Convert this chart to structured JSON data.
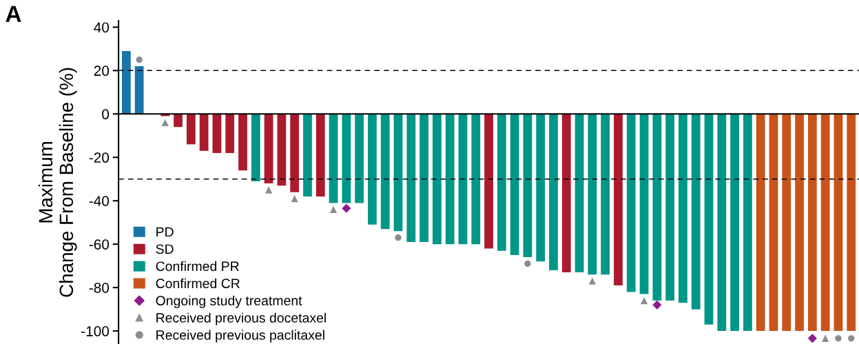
{
  "chart_data": {
    "type": "bar",
    "title": "A",
    "ylabel": "Maximum\nChange From Baseline (%)",
    "categories": [
      null,
      null,
      null,
      null,
      null,
      null,
      null,
      null,
      null,
      null,
      null,
      null,
      null,
      null,
      null,
      null,
      null,
      null,
      null,
      null,
      null,
      null,
      null,
      null,
      null,
      null,
      null,
      null,
      null,
      null,
      null,
      null,
      null,
      null,
      null,
      null,
      null,
      null,
      null,
      null,
      null,
      null,
      null,
      null,
      null,
      null,
      null,
      null,
      null,
      null,
      null,
      null,
      null,
      null,
      null,
      null,
      null
    ],
    "ylim": [
      -106,
      43
    ],
    "yticks": [
      -100,
      -80,
      -60,
      -40,
      -20,
      0,
      20,
      40
    ],
    "tick_labels": "y",
    "legend": "bottom left",
    "ref_lines": [
      {
        "axis": "y",
        "value": 20,
        "line_style": "dashed",
        "color": "#000000"
      },
      {
        "axis": "y",
        "value": -30,
        "line_style": "dashed",
        "color": "#000000"
      }
    ],
    "series": [
      {
        "name": "PD",
        "color": "#1a75a8",
        "values": [
          29,
          22,
          0,
          null,
          null,
          null,
          null,
          null,
          null,
          null,
          null,
          null,
          null,
          null,
          null,
          null,
          null,
          null,
          null,
          null,
          null,
          null,
          null,
          null,
          null,
          null,
          null,
          null,
          null,
          null,
          null,
          null,
          null,
          null,
          null,
          null,
          null,
          null,
          null,
          null,
          null,
          null,
          null,
          null,
          null,
          null,
          null,
          null,
          null,
          null,
          null,
          null,
          null,
          null,
          null,
          null,
          null
        ]
      },
      {
        "name": "SD",
        "color": "#ab1a2d",
        "values": [
          null,
          null,
          null,
          -1,
          -6,
          -14,
          -17,
          -18,
          -18,
          -26,
          null,
          -32,
          -33,
          -36,
          null,
          -38,
          null,
          null,
          null,
          null,
          null,
          null,
          null,
          null,
          null,
          null,
          null,
          null,
          -62,
          null,
          null,
          null,
          null,
          null,
          -73,
          null,
          null,
          null,
          -79,
          null,
          null,
          null,
          null,
          null,
          null,
          null,
          null,
          null,
          null,
          null,
          null,
          null,
          null,
          null,
          null,
          null,
          null
        ]
      },
      {
        "name": "Confirmed PR",
        "color": "#009688",
        "values": [
          null,
          null,
          null,
          null,
          null,
          null,
          null,
          null,
          null,
          null,
          -31,
          null,
          null,
          null,
          -38,
          null,
          -41,
          -41,
          -41,
          -51,
          -53,
          -54,
          -59,
          -59,
          -60,
          -60,
          -60,
          -60,
          null,
          -63,
          -65,
          -66,
          -68,
          -72,
          null,
          -73,
          -74,
          -74,
          null,
          -82,
          -83,
          -86,
          -86,
          -87,
          -90,
          -97,
          -100,
          -100,
          -100,
          null,
          null,
          null,
          null,
          null,
          null,
          null,
          null
        ]
      },
      {
        "name": "Confirmed CR",
        "color": "#c8541a",
        "values": [
          null,
          null,
          null,
          null,
          null,
          null,
          null,
          null,
          null,
          null,
          null,
          null,
          null,
          null,
          null,
          null,
          null,
          null,
          null,
          null,
          null,
          null,
          null,
          null,
          null,
          null,
          null,
          null,
          null,
          null,
          null,
          null,
          null,
          null,
          null,
          null,
          null,
          null,
          null,
          null,
          null,
          null,
          null,
          null,
          null,
          null,
          null,
          null,
          null,
          -100,
          -100,
          -100,
          -100,
          -100,
          -100,
          -100,
          -100
        ]
      },
      {
        "name": "Ongoing study treatment",
        "type": "scatter",
        "marker": "diamond",
        "color": "#8e1c8e",
        "values": [
          null,
          null,
          null,
          null,
          null,
          null,
          null,
          null,
          null,
          null,
          null,
          null,
          null,
          null,
          null,
          null,
          null,
          -43.5,
          null,
          null,
          null,
          null,
          null,
          null,
          null,
          null,
          null,
          null,
          null,
          null,
          null,
          null,
          null,
          null,
          null,
          null,
          null,
          null,
          null,
          null,
          null,
          -88,
          null,
          null,
          null,
          null,
          null,
          null,
          null,
          null,
          null,
          null,
          null,
          -103.4,
          null,
          null,
          null
        ]
      },
      {
        "name": "Received previous docetaxel",
        "type": "scatter",
        "marker": "triangle",
        "color": "#8c8c8c",
        "values": [
          null,
          null,
          null,
          -4,
          null,
          null,
          null,
          null,
          null,
          null,
          null,
          -35,
          null,
          -39,
          null,
          null,
          -44,
          null,
          null,
          null,
          null,
          null,
          null,
          null,
          null,
          null,
          null,
          null,
          null,
          null,
          null,
          null,
          null,
          null,
          null,
          null,
          -77,
          null,
          null,
          null,
          -86,
          null,
          null,
          null,
          null,
          null,
          null,
          null,
          null,
          null,
          null,
          null,
          null,
          null,
          -103.4,
          null,
          null
        ]
      },
      {
        "name": "Received previous paclitaxel",
        "type": "scatter",
        "marker": "circle",
        "color": "#8c8c8c",
        "values": [
          null,
          25,
          null,
          null,
          null,
          null,
          null,
          null,
          null,
          null,
          null,
          null,
          null,
          null,
          null,
          null,
          null,
          null,
          null,
          null,
          null,
          -57,
          null,
          null,
          null,
          null,
          null,
          null,
          null,
          null,
          null,
          -69,
          null,
          null,
          null,
          null,
          null,
          null,
          null,
          null,
          null,
          null,
          null,
          null,
          null,
          null,
          null,
          null,
          null,
          null,
          null,
          null,
          null,
          null,
          null,
          -103.4,
          -103.4
        ]
      }
    ]
  }
}
